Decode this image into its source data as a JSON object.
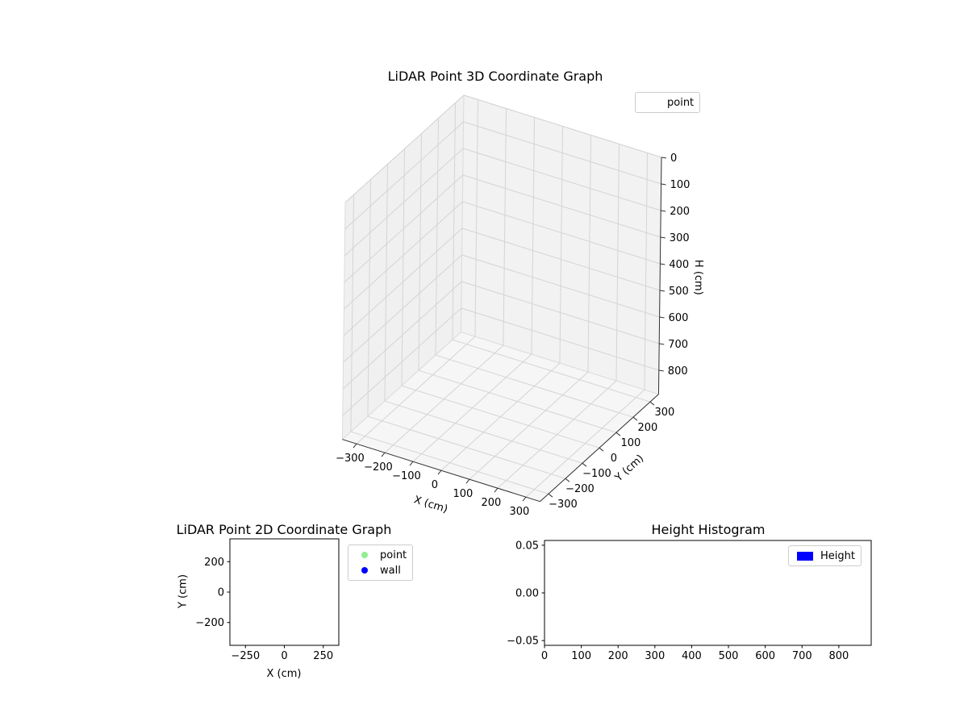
{
  "figure": {
    "background": "#ffffff",
    "text_color": "#000000"
  },
  "chart_data": [
    {
      "id": "plot3d",
      "type": "scatter3d",
      "title": "LiDAR Point 3D Coordinate Graph",
      "xlabel": "X (cm)",
      "ylabel": "Y (cm)",
      "zlabel": "H (cm)",
      "xlim": [
        -350,
        350
      ],
      "ylim": [
        -350,
        350
      ],
      "zlim": [
        0,
        890
      ],
      "zaxis_inverted": true,
      "xticks": [
        -300,
        -200,
        -100,
        0,
        100,
        200,
        300
      ],
      "xticklabels": [
        "−300",
        "−200",
        "−100",
        "0",
        "100",
        "200",
        "300"
      ],
      "yticks": [
        300,
        200,
        100,
        0,
        -100,
        -200,
        -300
      ],
      "yticklabels": [
        "300",
        "200",
        "100",
        "0",
        "−100",
        "−200",
        "−300"
      ],
      "zticks": [
        0,
        100,
        200,
        300,
        400,
        500,
        600,
        700,
        800
      ],
      "zticklabels": [
        "0",
        "100",
        "200",
        "300",
        "400",
        "500",
        "600",
        "700",
        "800"
      ],
      "grid": true,
      "pane_colors": {
        "left": "#f0f0f0",
        "back": "#f2f2f2",
        "floor": "#f6f6f6"
      },
      "grid_color": "#d4d4d4",
      "legend": [
        {
          "label": "point",
          "handle": "none"
        }
      ],
      "series": [
        {
          "name": "point",
          "points": []
        }
      ]
    },
    {
      "id": "plot2d",
      "type": "scatter",
      "title": "LiDAR Point 2D Coordinate Graph",
      "xlabel": "X (cm)",
      "ylabel": "Y (cm)",
      "xlim": [
        -350,
        350
      ],
      "ylim": [
        -350,
        350
      ],
      "xticks": [
        -250,
        0,
        250
      ],
      "xticklabels": [
        "−250",
        "0",
        "250"
      ],
      "yticks": [
        200,
        0,
        -200
      ],
      "yticklabels": [
        "200",
        "0",
        "−200"
      ],
      "grid": false,
      "legend": [
        {
          "label": "point",
          "handle": "dot",
          "color": "#90ee90"
        },
        {
          "label": "wall",
          "handle": "dot",
          "color": "#0000ff"
        }
      ],
      "series": [
        {
          "name": "point",
          "color": "#90ee90",
          "points": []
        },
        {
          "name": "wall",
          "color": "#0000ff",
          "points": []
        }
      ]
    },
    {
      "id": "hist",
      "type": "bar",
      "title": "Height Histogram",
      "xlabel": "",
      "ylabel": "",
      "xlim": [
        0,
        888
      ],
      "ylim": [
        -0.055,
        0.055
      ],
      "xticks": [
        0,
        100,
        200,
        300,
        400,
        500,
        600,
        700,
        800
      ],
      "xticklabels": [
        "0",
        "100",
        "200",
        "300",
        "400",
        "500",
        "600",
        "700",
        "800"
      ],
      "yticks": [
        0.05,
        0.0,
        -0.05
      ],
      "yticklabels": [
        "0.05",
        "0.00",
        "−0.05"
      ],
      "grid": false,
      "legend": [
        {
          "label": "Height",
          "handle": "patch",
          "color": "#0000ff"
        }
      ],
      "series": [
        {
          "name": "Height",
          "color": "#0000ff",
          "values": []
        }
      ]
    }
  ]
}
